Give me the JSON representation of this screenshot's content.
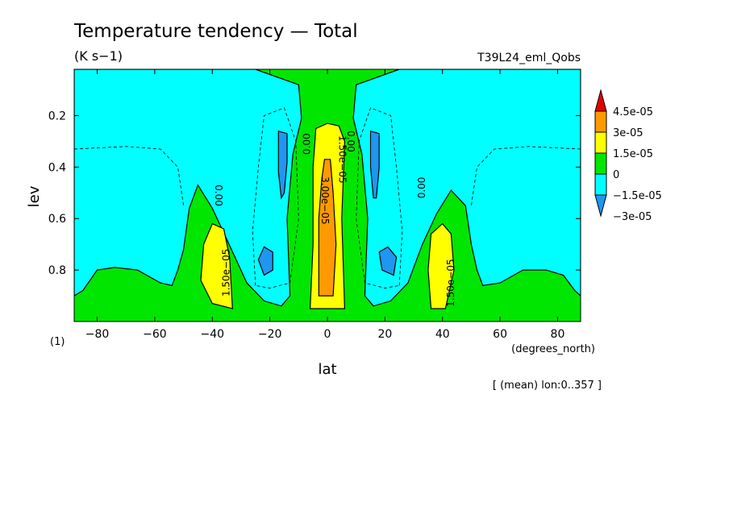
{
  "header": {
    "title": "Temperature tendency — Total",
    "units": "(K s−1)",
    "run_name": "T39L24_eml_Qobs",
    "footnote": "[ (mean) lon:0..357 ]",
    "lev_unit": "(1)"
  },
  "colors": {
    "lt_neg_3e5": "#1f96f0",
    "lt_neg_15e5": "#00ffff",
    "lt_0": "#00e600",
    "lt_15e5": "#ffff00",
    "lt_3e5": "#ff9900",
    "gt_45e5": "#e60000"
  },
  "chart_data": {
    "type": "contour",
    "xlabel": "lat",
    "xunit": "(degrees_north)",
    "ylabel": "lev",
    "xlim": [
      -88,
      88
    ],
    "ylim": [
      1.0,
      0.02
    ],
    "xticks": [
      -80,
      -60,
      -40,
      -20,
      0,
      20,
      40,
      60,
      80
    ],
    "xtick_labels": [
      "−80",
      "−60",
      "−40",
      "−20",
      "0",
      "20",
      "40",
      "60",
      "80"
    ],
    "yticks": [
      0.2,
      0.4,
      0.6,
      0.8
    ],
    "ytick_labels": [
      "0.2",
      "0.4",
      "0.6",
      "0.8"
    ],
    "colorbar": {
      "labels": [
        "4.5e-05",
        "3e-05",
        "1.5e-05",
        "0",
        "−1.5e-05",
        "−3e-05"
      ],
      "levels": [
        4.5e-05,
        3e-05,
        1.5e-05,
        0,
        -1.5e-05,
        -3e-05
      ]
    },
    "contour_labels": [
      {
        "text": "0.00",
        "lat": -7,
        "lev": 0.31,
        "rot": -90
      },
      {
        "text": "1.50e−05",
        "lat": 5,
        "lev": 0.37,
        "rot": 90
      },
      {
        "text": "0.00",
        "lat": 8,
        "lev": 0.3,
        "rot": 90
      },
      {
        "text": "3.00e−05",
        "lat": -1,
        "lev": 0.53,
        "rot": 90
      },
      {
        "text": "0.00",
        "lat": -38,
        "lev": 0.51,
        "rot": 90
      },
      {
        "text": "0.00",
        "lat": 33,
        "lev": 0.48,
        "rot": -90
      },
      {
        "text": "1.50e−05",
        "lat": -35,
        "lev": 0.81,
        "rot": -90
      },
      {
        "text": "1.50e−05",
        "lat": 43,
        "lev": 0.85,
        "rot": -90
      }
    ],
    "regions": [
      {
        "level": "lt_0",
        "pts": [
          [
            -88,
            1.0
          ],
          [
            -88,
            0.02
          ],
          [
            88,
            0.02
          ],
          [
            88,
            1.0
          ]
        ]
      },
      {
        "level": "lt_neg_15e5",
        "pts": [
          [
            -88,
            0.02
          ],
          [
            -25,
            0.02
          ],
          [
            -10,
            0.08
          ],
          [
            -9,
            0.21
          ],
          [
            -12,
            0.35
          ],
          [
            -14,
            0.6
          ],
          [
            -13,
            0.9
          ],
          [
            -16,
            0.94
          ],
          [
            -22,
            0.92
          ],
          [
            -28,
            0.85
          ],
          [
            -35,
            0.68
          ],
          [
            -40,
            0.56
          ],
          [
            -45,
            0.47
          ],
          [
            -48,
            0.56
          ],
          [
            -50,
            0.72
          ],
          [
            -52,
            0.8
          ],
          [
            -54,
            0.86
          ],
          [
            -58,
            0.85
          ],
          [
            -66,
            0.8
          ],
          [
            -74,
            0.79
          ],
          [
            -80,
            0.8
          ],
          [
            -85,
            0.88
          ],
          [
            -88,
            0.9
          ]
        ]
      },
      {
        "level": "lt_neg_15e5",
        "pts": [
          [
            88,
            0.02
          ],
          [
            25,
            0.02
          ],
          [
            10,
            0.08
          ],
          [
            9,
            0.21
          ],
          [
            12,
            0.35
          ],
          [
            14,
            0.6
          ],
          [
            13,
            0.9
          ],
          [
            16,
            0.94
          ],
          [
            22,
            0.92
          ],
          [
            28,
            0.85
          ],
          [
            33,
            0.7
          ],
          [
            38,
            0.58
          ],
          [
            43,
            0.49
          ],
          [
            48,
            0.55
          ],
          [
            50,
            0.7
          ],
          [
            52,
            0.8
          ],
          [
            54,
            0.86
          ],
          [
            60,
            0.85
          ],
          [
            68,
            0.8
          ],
          [
            76,
            0.8
          ],
          [
            82,
            0.82
          ],
          [
            86,
            0.88
          ],
          [
            88,
            0.9
          ]
        ]
      },
      {
        "level": "lt_15e5",
        "pts": [
          [
            -6,
            0.95
          ],
          [
            -5,
            0.7
          ],
          [
            -5,
            0.4
          ],
          [
            -4,
            0.25
          ],
          [
            0,
            0.23
          ],
          [
            4,
            0.24
          ],
          [
            6,
            0.3
          ],
          [
            5,
            0.6
          ],
          [
            6,
            0.95
          ]
        ]
      },
      {
        "level": "lt_3e5",
        "pts": [
          [
            -3,
            0.9
          ],
          [
            -3,
            0.6
          ],
          [
            -2,
            0.45
          ],
          [
            -1,
            0.37
          ],
          [
            1,
            0.37
          ],
          [
            2,
            0.5
          ],
          [
            3,
            0.7
          ],
          [
            2,
            0.9
          ]
        ]
      },
      {
        "level": "lt_15e5",
        "pts": [
          [
            -33,
            0.95
          ],
          [
            -34,
            0.75
          ],
          [
            -36,
            0.64
          ],
          [
            -40,
            0.62
          ],
          [
            -43,
            0.7
          ],
          [
            -44,
            0.84
          ],
          [
            -40,
            0.93
          ]
        ]
      },
      {
        "level": "lt_15e5",
        "pts": [
          [
            41,
            0.95
          ],
          [
            44,
            0.8
          ],
          [
            43,
            0.66
          ],
          [
            40,
            0.62
          ],
          [
            36,
            0.66
          ],
          [
            35,
            0.8
          ],
          [
            36,
            0.95
          ]
        ]
      },
      {
        "level": "lt_neg_3e5",
        "pts": [
          [
            -17,
            0.26
          ],
          [
            -14,
            0.27
          ],
          [
            -14,
            0.38
          ],
          [
            -15,
            0.5
          ],
          [
            -16,
            0.52
          ],
          [
            -17,
            0.42
          ]
        ]
      },
      {
        "level": "lt_neg_3e5",
        "pts": [
          [
            15,
            0.26
          ],
          [
            18,
            0.27
          ],
          [
            18,
            0.4
          ],
          [
            17,
            0.52
          ],
          [
            16,
            0.52
          ],
          [
            15,
            0.4
          ]
        ]
      },
      {
        "level": "lt_neg_3e5",
        "pts": [
          [
            -24,
            0.76
          ],
          [
            -22,
            0.71
          ],
          [
            -19,
            0.73
          ],
          [
            -19,
            0.8
          ],
          [
            -22,
            0.82
          ]
        ]
      },
      {
        "level": "lt_neg_3e5",
        "pts": [
          [
            18,
            0.73
          ],
          [
            21,
            0.71
          ],
          [
            24,
            0.75
          ],
          [
            23,
            0.82
          ],
          [
            19,
            0.8
          ]
        ]
      }
    ],
    "dashed_contours": [
      [
        [
          -88,
          0.33
        ],
        [
          -70,
          0.32
        ],
        [
          -58,
          0.33
        ],
        [
          -52,
          0.4
        ],
        [
          -50,
          0.55
        ]
      ],
      [
        [
          -25,
          0.86
        ],
        [
          -26,
          0.65
        ],
        [
          -24,
          0.4
        ],
        [
          -22,
          0.2
        ],
        [
          -15,
          0.17
        ],
        [
          -11,
          0.3
        ],
        [
          -10,
          0.6
        ],
        [
          -13,
          0.85
        ],
        [
          -20,
          0.87
        ],
        [
          -25,
          0.86
        ]
      ],
      [
        [
          88,
          0.33
        ],
        [
          70,
          0.32
        ],
        [
          58,
          0.33
        ],
        [
          52,
          0.4
        ],
        [
          50,
          0.55
        ]
      ],
      [
        [
          25,
          0.86
        ],
        [
          26,
          0.65
        ],
        [
          24,
          0.4
        ],
        [
          22,
          0.2
        ],
        [
          15,
          0.17
        ],
        [
          11,
          0.3
        ],
        [
          10,
          0.6
        ],
        [
          13,
          0.85
        ],
        [
          20,
          0.87
        ],
        [
          25,
          0.86
        ]
      ]
    ]
  }
}
